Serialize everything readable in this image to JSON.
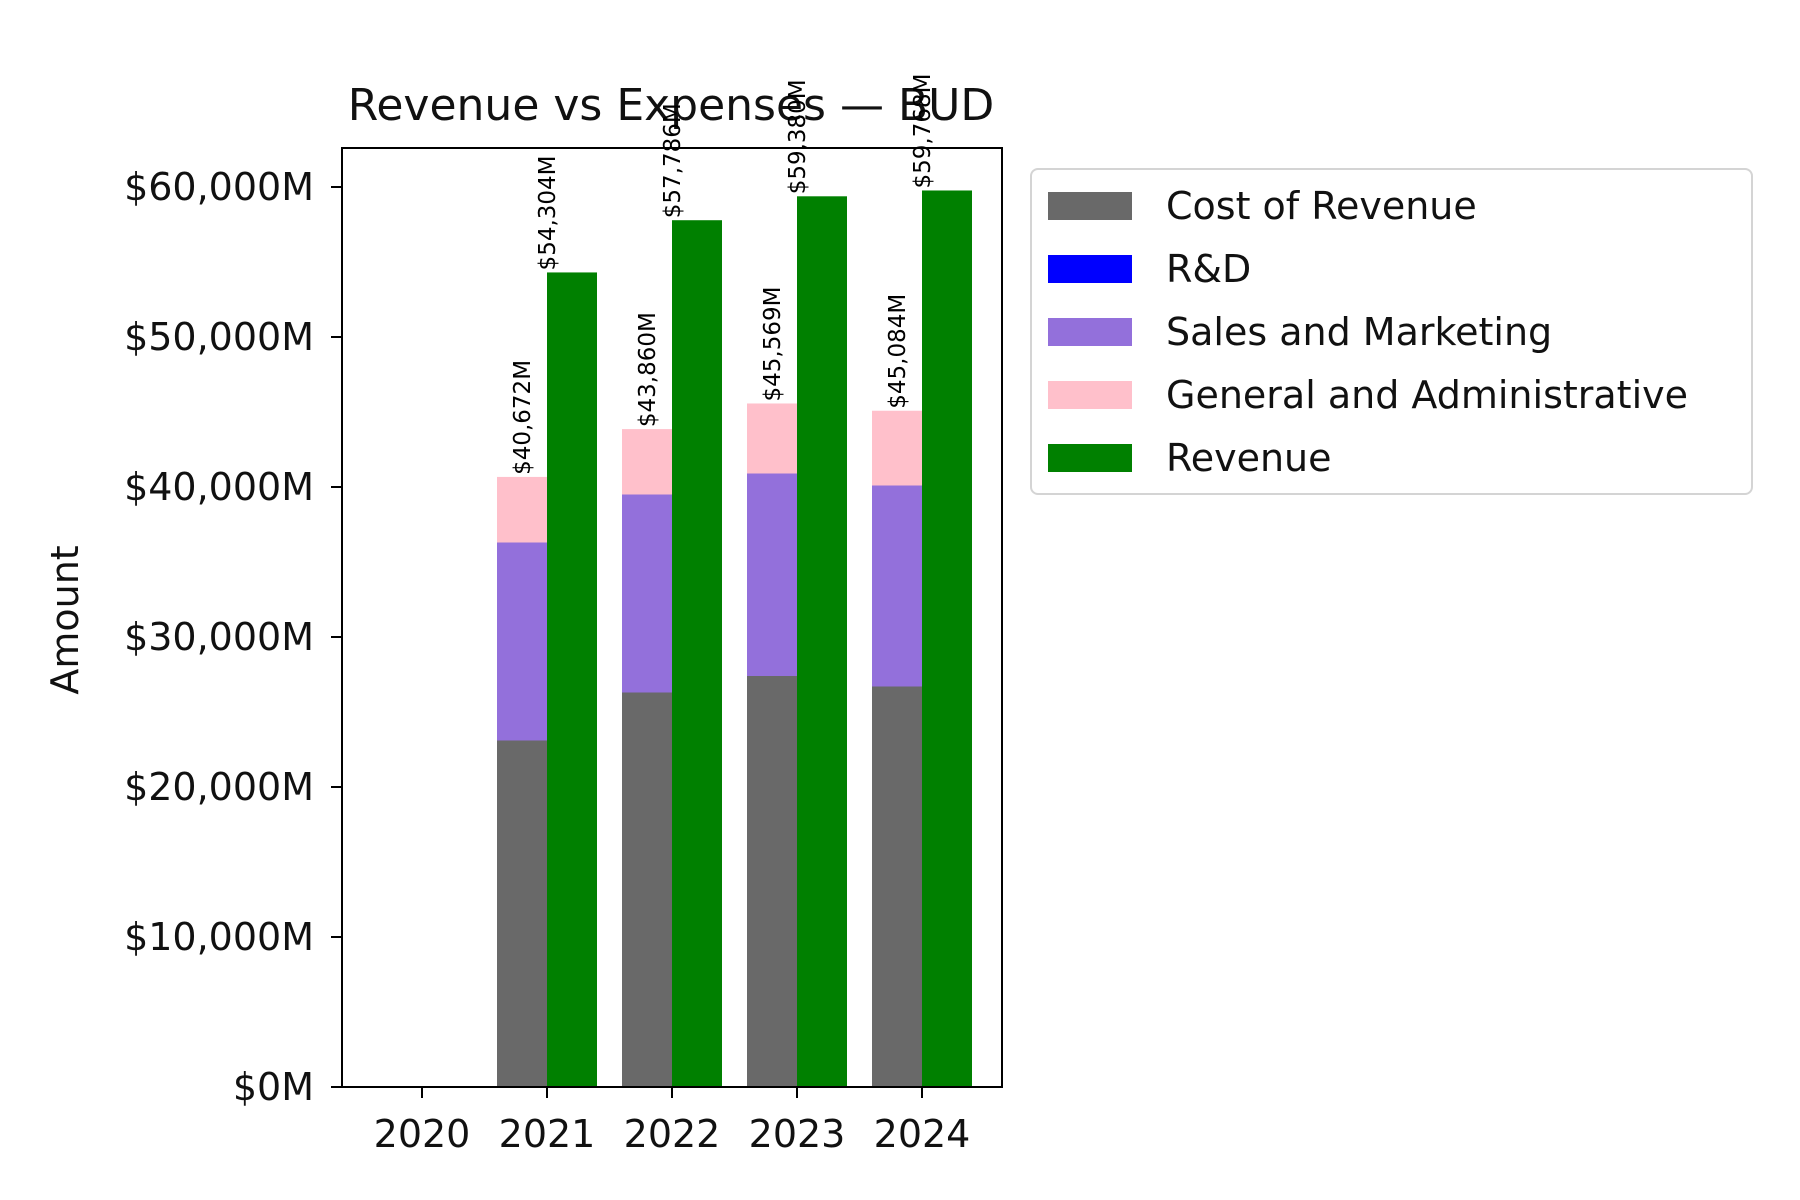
{
  "chart_data": {
    "type": "bar",
    "title": "Revenue vs Expenses — BUD",
    "xlabel": "",
    "ylabel": "Amount",
    "ylim": [
      0,
      62600
    ],
    "yticks": [
      0,
      10000,
      20000,
      30000,
      40000,
      50000,
      60000
    ],
    "ytick_labels": [
      "$0M",
      "$10,000M",
      "$20,000M",
      "$30,000M",
      "$40,000M",
      "$50,000M",
      "$60,000M"
    ],
    "categories": [
      "2020",
      "2021",
      "2022",
      "2023",
      "2024"
    ],
    "stacked_series": [
      {
        "name": "Cost of Revenue",
        "color": "#696969",
        "values": [
          0,
          23100,
          26300,
          27400,
          26700
        ]
      },
      {
        "name": "R&D",
        "color": "#0000ff",
        "values": [
          0,
          0,
          0,
          0,
          0
        ]
      },
      {
        "name": "Sales and Marketing",
        "color": "#9370db",
        "values": [
          0,
          13200,
          13200,
          13500,
          13400
        ]
      },
      {
        "name": "General and Administrative",
        "color": "#ffc0cb",
        "values": [
          0,
          4372,
          4360,
          4669,
          4984
        ]
      }
    ],
    "revenue_series": {
      "name": "Revenue",
      "color": "#008000",
      "values": [
        0,
        54304,
        57786,
        59380,
        59768
      ]
    },
    "expense_total_labels": [
      "",
      "$40,672M",
      "$43,860M",
      "$45,569M",
      "$45,084M"
    ],
    "revenue_labels": [
      "",
      "$54,304M",
      "$57,786M",
      "$59,380M",
      "$59,768M"
    ],
    "grid": false,
    "legend_position": "outside-right-top"
  }
}
